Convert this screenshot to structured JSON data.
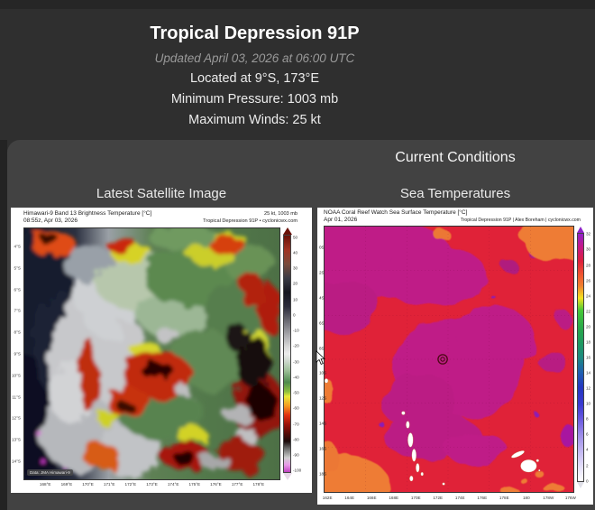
{
  "header": {
    "title": "Tropical Depression 91P",
    "updated": "Updated April 03, 2026 at 06:00 UTC",
    "location": "Located at 9°S, 173°E",
    "pressure": "Minimum Pressure: 1003 mb",
    "winds": "Maximum Winds: 25 kt"
  },
  "section": {
    "title": "Current Conditions",
    "left_panel_title": "Latest Satellite Image",
    "right_panel_title": "Sea Temperatures"
  },
  "satellite": {
    "product": "Himawari-9 Band 13 Brightness Temperature [°C]",
    "timestamp": "08:55z, Apr 03, 2026",
    "intensity": "25 kt, 1003 mb",
    "credit": "Tropical Depression 91P • cyclonicwx.com",
    "watermark": "Data: JMA Himawari-9",
    "y_ticks": [
      "4°S",
      "5°S",
      "6°S",
      "7°S",
      "8°S",
      "9°S",
      "10°S",
      "11°S",
      "12°S",
      "13°S",
      "14°S"
    ],
    "x_ticks": [
      "168°E",
      "169°E",
      "170°E",
      "171°E",
      "172°E",
      "173°E",
      "174°E",
      "175°E",
      "176°E",
      "177°E",
      "178°E"
    ],
    "colorbar_ticks": [
      "50",
      "40",
      "30",
      "20",
      "10",
      "0",
      "-10",
      "-20",
      "-30",
      "-40",
      "-50",
      "-60",
      "-70",
      "-80",
      "-90",
      "-100"
    ]
  },
  "sst": {
    "product": "NOAA Coral Reef Watch Sea Surface Temperature [°C]",
    "date": "Apr 01, 2026",
    "credit": "Tropical Depression 91P | Alex Boreham | cyclonicwx.com",
    "y_ticks": [
      "0S",
      "2S",
      "4S",
      "6S",
      "8S",
      "10S",
      "12S",
      "14S",
      "16S",
      "18S"
    ],
    "x_ticks": [
      "162E",
      "164E",
      "166E",
      "168E",
      "170E",
      "172E",
      "174E",
      "176E",
      "178E",
      "180",
      "178W",
      "176W"
    ],
    "colorbar_ticks": [
      "32",
      "30",
      "28",
      "26",
      "24",
      "22",
      "20",
      "18",
      "16",
      "14",
      "12",
      "10",
      "8",
      "6",
      "4",
      "2",
      "0"
    ]
  },
  "colors": {
    "page_bg": "#2f2f2f",
    "panel_bg": "#424242",
    "sst_base": "#e02238",
    "sst_warm_patch": "#bf1e87",
    "sst_cool_patch": "#ee7b36"
  }
}
